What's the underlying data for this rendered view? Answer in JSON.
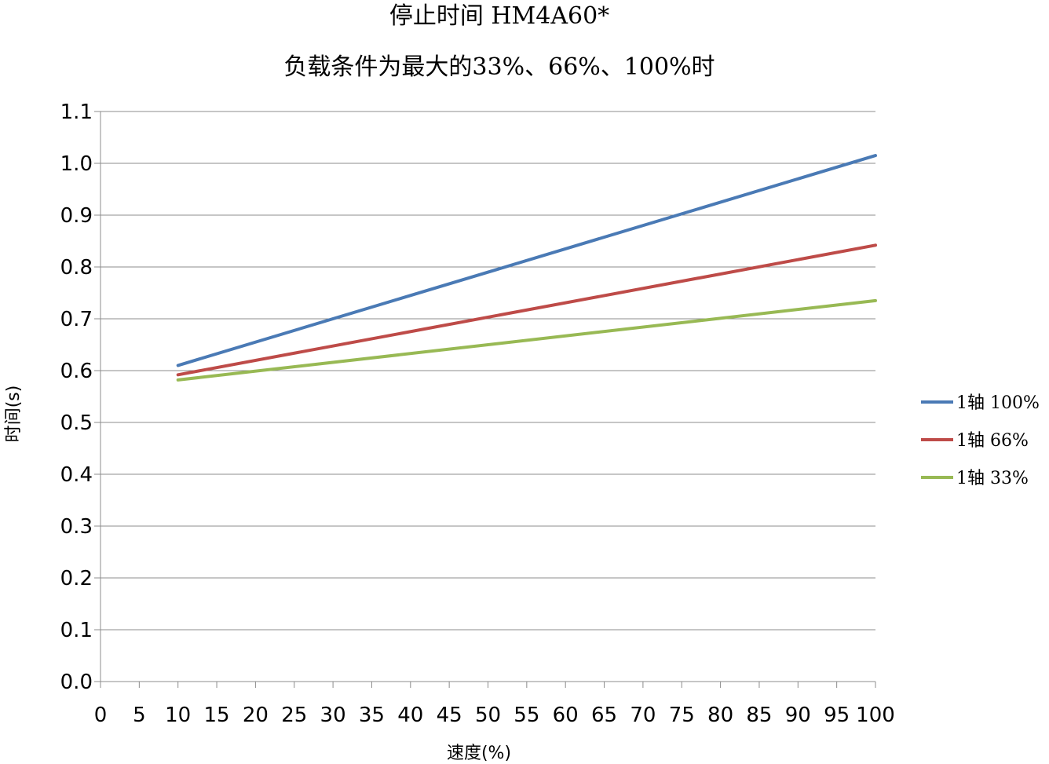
{
  "chart_data": {
    "type": "line",
    "title": "停止时间 HM4A60*",
    "subtitle": "负载条件为最大的33%、66%、100%时",
    "xlabel": "速度(%)",
    "ylabel": "时间(s)",
    "xlim": [
      0,
      100
    ],
    "ylim": [
      0.0,
      1.1
    ],
    "x_ticks": [
      "0",
      "5",
      "10",
      "15",
      "20",
      "25",
      "30",
      "35",
      "40",
      "45",
      "50",
      "55",
      "60",
      "65",
      "70",
      "75",
      "80",
      "85",
      "90",
      "95",
      "100"
    ],
    "y_ticks": [
      "0.0",
      "0.1",
      "0.2",
      "0.3",
      "0.4",
      "0.5",
      "0.6",
      "0.7",
      "0.8",
      "0.9",
      "1.0",
      "1.1"
    ],
    "grid": true,
    "legend_position": "right",
    "series": [
      {
        "name": "1轴 100%",
        "color": "#4a7ab5",
        "x": [
          10,
          100
        ],
        "y": [
          0.61,
          1.015
        ]
      },
      {
        "name": "1轴 66%",
        "color": "#be4b48",
        "x": [
          10,
          100
        ],
        "y": [
          0.592,
          0.842
        ]
      },
      {
        "name": "1轴 33%",
        "color": "#98b954",
        "x": [
          10,
          100
        ],
        "y": [
          0.582,
          0.735
        ]
      }
    ]
  }
}
